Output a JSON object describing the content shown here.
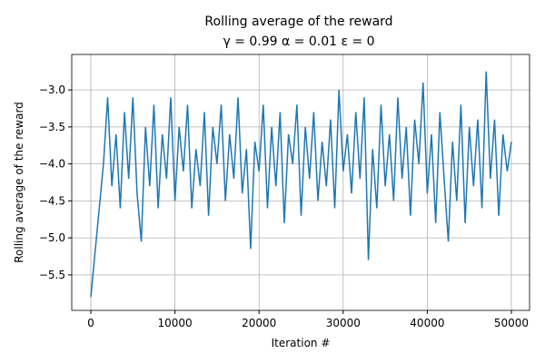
{
  "chart_data": {
    "type": "line",
    "title": "Rolling average of the reward",
    "subtitle": "γ = 0.99 α = 0.01 ε = 0",
    "xlabel": "Iteration #",
    "ylabel": "Rolling average of the reward",
    "grid": true,
    "xlim": [
      -2268,
      52160
    ],
    "ylim": [
      -5.98,
      -2.52
    ],
    "xticks": [
      0,
      10000,
      20000,
      30000,
      40000,
      50000
    ],
    "yticks": [
      {
        "value": -5.5,
        "label": "−5.5"
      },
      {
        "value": -5.0,
        "label": "−5.0"
      },
      {
        "value": -4.5,
        "label": "−4.5"
      },
      {
        "value": -4.0,
        "label": "−4.0"
      },
      {
        "value": -3.5,
        "label": "−3.5"
      },
      {
        "value": -3.0,
        "label": "−3.0"
      }
    ],
    "x": [
      0,
      500,
      1000,
      1500,
      2000,
      2500,
      3000,
      3500,
      4000,
      4500,
      5000,
      5500,
      6000,
      6500,
      7000,
      7500,
      8000,
      8500,
      9000,
      9500,
      10000,
      10500,
      11000,
      11500,
      12000,
      12500,
      13000,
      13500,
      14000,
      14500,
      15000,
      15500,
      16000,
      16500,
      17000,
      17500,
      18000,
      18500,
      19000,
      19500,
      20000,
      20500,
      21000,
      21500,
      22000,
      22500,
      23000,
      23500,
      24000,
      24500,
      25000,
      25500,
      26000,
      26500,
      27000,
      27500,
      28000,
      28500,
      29000,
      29500,
      30000,
      30500,
      31000,
      31500,
      32000,
      32500,
      33000,
      33500,
      34000,
      34500,
      35000,
      35500,
      36000,
      36500,
      37000,
      37500,
      38000,
      38500,
      39000,
      39500,
      40000,
      40500,
      41000,
      41500,
      42000,
      42500,
      43000,
      43500,
      44000,
      44500,
      45000,
      45500,
      46000,
      46500,
      47000,
      47500,
      48000,
      48500,
      49000,
      49500,
      50000
    ],
    "series": [
      {
        "name": "reward",
        "color": "#1f77b4",
        "values": [
          -5.8,
          -5.2,
          -4.6,
          -4.0,
          -3.1,
          -4.3,
          -3.6,
          -4.6,
          -3.3,
          -4.2,
          -3.1,
          -4.4,
          -5.05,
          -3.5,
          -4.3,
          -3.2,
          -4.6,
          -3.6,
          -4.2,
          -3.1,
          -4.5,
          -3.5,
          -4.1,
          -3.2,
          -4.6,
          -3.8,
          -4.3,
          -3.3,
          -4.7,
          -3.5,
          -4.0,
          -3.2,
          -4.5,
          -3.6,
          -4.2,
          -3.1,
          -4.4,
          -3.8,
          -5.15,
          -3.7,
          -4.1,
          -3.2,
          -4.6,
          -3.5,
          -4.3,
          -3.3,
          -4.8,
          -3.6,
          -4.0,
          -3.2,
          -4.7,
          -3.5,
          -4.2,
          -3.3,
          -4.5,
          -3.7,
          -4.3,
          -3.4,
          -4.6,
          -3.0,
          -4.1,
          -3.6,
          -4.4,
          -3.3,
          -4.2,
          -3.1,
          -5.3,
          -3.8,
          -4.6,
          -3.2,
          -4.3,
          -3.6,
          -4.5,
          -3.1,
          -4.2,
          -3.5,
          -4.7,
          -3.4,
          -4.0,
          -2.9,
          -4.4,
          -3.6,
          -4.8,
          -3.3,
          -4.2,
          -5.05,
          -3.7,
          -4.5,
          -3.2,
          -4.8,
          -3.5,
          -4.3,
          -3.4,
          -4.6,
          -2.75,
          -4.2,
          -3.4,
          -4.7,
          -3.6,
          -4.1,
          -3.7
        ]
      }
    ]
  }
}
